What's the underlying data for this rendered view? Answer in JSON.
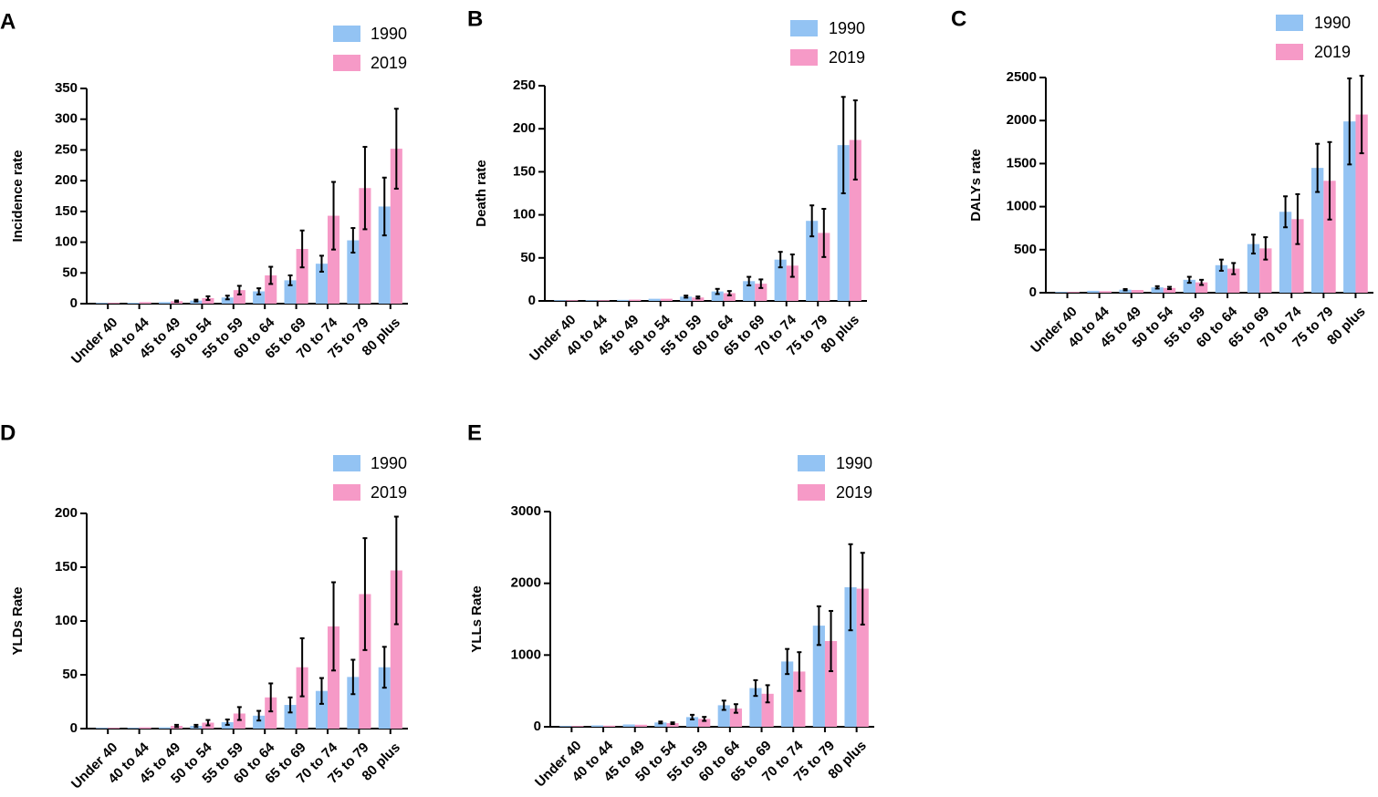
{
  "colors": {
    "s1990": "#93c3f3",
    "s2019": "#f69ac7",
    "axis": "#000000",
    "error": "#000000"
  },
  "chart_data": [
    {
      "panel": "A",
      "type": "bar",
      "ylabel": "Incidence rate",
      "ylim": [
        0,
        350
      ],
      "yticks": [
        0,
        50,
        100,
        150,
        200,
        250,
        300,
        350
      ],
      "ytick_labels": [
        "0",
        "50",
        "100",
        "150",
        "200",
        "250",
        "300",
        "350"
      ],
      "categories": [
        "Under 40",
        "40 to 44",
        "45 to 49",
        "50 to 54",
        "55 to 59",
        "60 to 64",
        "65 to 69",
        "70 to 74",
        "75 to 79",
        "80 plus"
      ],
      "series": [
        {
          "name": "1990",
          "values": [
            0.5,
            1.5,
            2.5,
            5,
            10,
            20,
            38,
            65,
            103,
            158
          ],
          "err": [
            0.2,
            0.5,
            0.8,
            1.5,
            3,
            5,
            8,
            13,
            20,
            47
          ]
        },
        {
          "name": "2019",
          "values": [
            1,
            2.5,
            4,
            9,
            22,
            46,
            89,
            143,
            188,
            252
          ],
          "err": [
            0.3,
            0.8,
            1.2,
            3,
            7,
            14,
            30,
            55,
            67,
            65
          ]
        }
      ]
    },
    {
      "panel": "B",
      "type": "bar",
      "ylabel": "Death rate",
      "ylim": [
        0,
        250
      ],
      "yticks": [
        0,
        50,
        100,
        150,
        200,
        250
      ],
      "ytick_labels": [
        "0",
        "50",
        "100",
        "150",
        "200",
        "250"
      ],
      "categories": [
        "Under 40",
        "40 to 44",
        "45 to 49",
        "50 to 54",
        "55 to 59",
        "60 to 64",
        "65 to 69",
        "70 to 74",
        "75 to 79",
        "80 plus"
      ],
      "series": [
        {
          "name": "1990",
          "values": [
            0.2,
            0.7,
            1.2,
            2.5,
            5,
            11,
            23,
            48,
            93,
            181
          ],
          "err": [
            0.1,
            0.2,
            0.4,
            0.6,
            1.2,
            3,
            5,
            9,
            18,
            56
          ]
        },
        {
          "name": "2019",
          "values": [
            0.3,
            0.8,
            1.5,
            2.5,
            4,
            9,
            20,
            41,
            79,
            187
          ],
          "err": [
            0.1,
            0.2,
            0.4,
            0.6,
            1.2,
            2.5,
            5,
            13,
            28,
            46
          ]
        }
      ]
    },
    {
      "panel": "C",
      "type": "bar",
      "ylabel": "DALYs rate",
      "ylim": [
        0,
        2500
      ],
      "yticks": [
        0,
        500,
        1000,
        1500,
        2000,
        2500
      ],
      "ytick_labels": [
        "0",
        "500",
        "1000",
        "1500",
        "2000",
        "2500"
      ],
      "categories": [
        "Under 40",
        "40 to 44",
        "45 to 49",
        "50 to 54",
        "55 to 59",
        "60 to 64",
        "65 to 69",
        "70 to 74",
        "75 to 79",
        "80 plus"
      ],
      "series": [
        {
          "name": "1990",
          "values": [
            8,
            22,
            35,
            62,
            150,
            320,
            565,
            940,
            1450,
            1990
          ],
          "err": [
            3,
            5,
            8,
            14,
            35,
            65,
            110,
            180,
            280,
            500
          ]
        },
        {
          "name": "2019",
          "values": [
            7,
            18,
            32,
            55,
            120,
            280,
            515,
            855,
            1300,
            2070
          ],
          "err": [
            3,
            4,
            7,
            13,
            30,
            65,
            130,
            290,
            450,
            450
          ]
        }
      ]
    },
    {
      "panel": "D",
      "type": "bar",
      "ylabel": "YLDs Rate",
      "ylim": [
        0,
        200
      ],
      "yticks": [
        0,
        50,
        100,
        150,
        200
      ],
      "ytick_labels": [
        "0",
        "50",
        "100",
        "150",
        "200"
      ],
      "categories": [
        "Under 40",
        "40 to 44",
        "45 to 49",
        "50 to 54",
        "55 to 59",
        "60 to 64",
        "65 to 69",
        "70 to 74",
        "75 to 79",
        "80 plus"
      ],
      "series": [
        {
          "name": "1990",
          "values": [
            0.2,
            0.6,
            1.2,
            2.5,
            6,
            12,
            22,
            35,
            48,
            57
          ],
          "err": [
            0.1,
            0.2,
            0.5,
            1,
            2.5,
            4.5,
            7,
            12,
            16,
            19
          ]
        },
        {
          "name": "2019",
          "values": [
            0.5,
            1.2,
            2.5,
            5.5,
            14,
            29,
            57,
            95,
            125,
            147
          ],
          "err": [
            0.2,
            0.5,
            1,
            2.5,
            6,
            13,
            27,
            41,
            52,
            50
          ]
        }
      ]
    },
    {
      "panel": "E",
      "type": "bar",
      "ylabel": "YLLs Rate",
      "ylim": [
        0,
        3000
      ],
      "yticks": [
        0,
        1000,
        2000,
        3000
      ],
      "ytick_labels": [
        "0",
        "1000",
        "2000",
        "3000"
      ],
      "categories": [
        "Under 40",
        "40 to 44",
        "45 to 49",
        "50 to 54",
        "55 to 59",
        "60 to 64",
        "65 to 69",
        "70 to 74",
        "75 to 79",
        "80 plus"
      ],
      "series": [
        {
          "name": "1990",
          "values": [
            8,
            20,
            32,
            60,
            135,
            300,
            540,
            910,
            1410,
            1945
          ],
          "err": [
            3,
            5,
            7,
            13,
            32,
            65,
            110,
            175,
            270,
            600
          ]
        },
        {
          "name": "2019",
          "values": [
            7,
            16,
            28,
            50,
            110,
            255,
            460,
            770,
            1195,
            1925
          ],
          "err": [
            3,
            4,
            6,
            12,
            28,
            60,
            120,
            270,
            420,
            500
          ]
        }
      ]
    }
  ]
}
